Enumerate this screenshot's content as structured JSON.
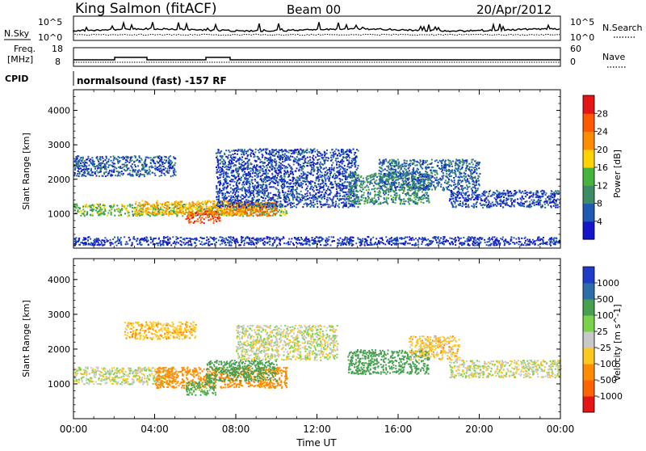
{
  "header": {
    "station": "King Salmon (fitACF)",
    "beam": "Beam 00",
    "date": "20/Apr/2012"
  },
  "nsky_panel": {
    "left_label": "N.Sky",
    "right_label": "N.Search",
    "left_ticks": [
      "10^5",
      "10^0"
    ],
    "right_ticks": [
      "10^5",
      "10^0"
    ]
  },
  "freq_panel": {
    "left_label_1": "Freq.",
    "left_label_2": "[MHz]",
    "right_label": "Nave",
    "left_ticks": [
      "18",
      "8"
    ],
    "right_ticks": [
      "60",
      "0"
    ]
  },
  "cpid": {
    "label": "CPID",
    "text": "normalsound (fast) -157 RF"
  },
  "power_colorbar": {
    "label": "Power [dB]",
    "ticks": [
      "4",
      "8",
      "12",
      "16",
      "20",
      "24",
      "28"
    ],
    "colors": [
      "#1414c8",
      "#1e5ab4",
      "#3c8c64",
      "#46b43c",
      "#ffd200",
      "#ff8c00",
      "#ff5a00",
      "#e61414"
    ]
  },
  "velocity_colorbar": {
    "label": "Velocity [m s^-1]",
    "ticks": [
      "1000",
      "500",
      "100",
      "25",
      "-25",
      "-100",
      "-500",
      "-1000"
    ],
    "colors": [
      "#1e3cc8",
      "#2d6eaa",
      "#46a050",
      "#7ad24a",
      "#c8c8c8",
      "#ffc81e",
      "#ff8c00",
      "#ff6400",
      "#e61414"
    ]
  },
  "x_axis": {
    "label": "Time UT",
    "ticks": [
      "00:00",
      "04:00",
      "08:00",
      "12:00",
      "16:00",
      "20:00",
      "00:00"
    ]
  },
  "chart_data": [
    {
      "type": "heatmap",
      "title": "Power",
      "ylabel": "Slant Range [km]",
      "xlabel": "",
      "ylim": [
        0,
        4600
      ],
      "yticks": [
        1000,
        2000,
        3000,
        4000
      ],
      "x_range_hours": [
        0,
        24
      ],
      "bands": [
        {
          "t_start": 0.0,
          "t_end": 10.5,
          "range_km": [
            950,
            1300
          ],
          "value_db": 14
        },
        {
          "t_start": 3.0,
          "t_end": 9.0,
          "range_km": [
            1000,
            1400
          ],
          "value_db": 20
        },
        {
          "t_start": 5.5,
          "t_end": 7.2,
          "range_km": [
            750,
            1100
          ],
          "value_db": 26
        },
        {
          "t_start": 7.5,
          "t_end": 10.0,
          "range_km": [
            950,
            1350
          ],
          "value_db": 24
        },
        {
          "t_start": 0.0,
          "t_end": 5.0,
          "range_km": [
            2100,
            2700
          ],
          "value_db": 6
        },
        {
          "t_start": 7.0,
          "t_end": 14.0,
          "range_km": [
            1200,
            2900
          ],
          "value_db": 5
        },
        {
          "t_start": 13.5,
          "t_end": 17.5,
          "range_km": [
            1300,
            2200
          ],
          "value_db": 10
        },
        {
          "t_start": 15.0,
          "t_end": 20.0,
          "range_km": [
            1700,
            2600
          ],
          "value_db": 7
        },
        {
          "t_start": 18.5,
          "t_end": 24.0,
          "range_km": [
            1200,
            1700
          ],
          "value_db": 5
        },
        {
          "t_start": 0.0,
          "t_end": 24.0,
          "range_km": [
            100,
            350
          ],
          "value_db": 4
        }
      ]
    },
    {
      "type": "heatmap",
      "title": "Velocity",
      "ylabel": "Slant Range [km]",
      "xlabel": "Time UT",
      "ylim": [
        0,
        4600
      ],
      "yticks": [
        1000,
        2000,
        3000,
        4000
      ],
      "x_range_hours": [
        0,
        24
      ],
      "bands": [
        {
          "t_start": 0.0,
          "t_end": 5.0,
          "range_km": [
            1000,
            1500
          ],
          "value_ms": 0
        },
        {
          "t_start": 4.0,
          "t_end": 10.5,
          "range_km": [
            900,
            1500
          ],
          "value_ms": -300
        },
        {
          "t_start": 5.5,
          "t_end": 7.0,
          "range_km": [
            700,
            1100
          ],
          "value_ms": 150
        },
        {
          "t_start": 6.5,
          "t_end": 10.0,
          "range_km": [
            1100,
            1700
          ],
          "value_ms": 200
        },
        {
          "t_start": 13.5,
          "t_end": 17.5,
          "range_km": [
            1300,
            2000
          ],
          "value_ms": 300
        },
        {
          "t_start": 16.5,
          "t_end": 19.0,
          "range_km": [
            1700,
            2400
          ],
          "value_ms": -60
        },
        {
          "t_start": 18.5,
          "t_end": 24.0,
          "range_km": [
            1200,
            1700
          ],
          "value_ms": 0
        },
        {
          "t_start": 2.5,
          "t_end": 6.0,
          "range_km": [
            2300,
            2800
          ],
          "value_ms": -80
        },
        {
          "t_start": 8.0,
          "t_end": 13.0,
          "range_km": [
            1700,
            2700
          ],
          "value_ms": 0
        }
      ]
    }
  ]
}
